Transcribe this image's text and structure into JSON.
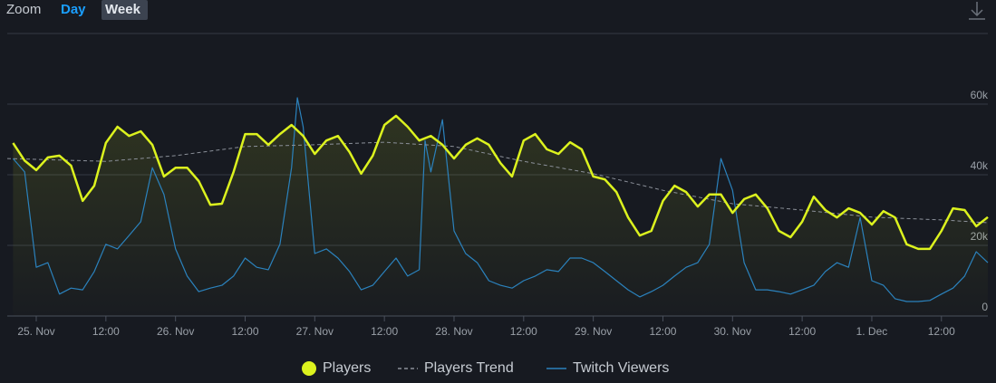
{
  "chart_data": {
    "type": "line",
    "zoom_label": "Zoom",
    "zoom_options": [
      "Day",
      "Week"
    ],
    "xlim": [
      -5,
      164
    ],
    "xticks": [
      {
        "value": 0,
        "label": "25. Nov"
      },
      {
        "value": 12,
        "label": "12:00"
      },
      {
        "value": 24,
        "label": "26. Nov"
      },
      {
        "value": 36,
        "label": "12:00"
      },
      {
        "value": 48,
        "label": "27. Nov"
      },
      {
        "value": 60,
        "label": "12:00"
      },
      {
        "value": 72,
        "label": "28. Nov"
      },
      {
        "value": 84,
        "label": "12:00"
      },
      {
        "value": 96,
        "label": "29. Nov"
      },
      {
        "value": 108,
        "label": "12:00"
      },
      {
        "value": 120,
        "label": "30. Nov"
      },
      {
        "value": 132,
        "label": "12:00"
      },
      {
        "value": 144,
        "label": "1. Dec"
      },
      {
        "value": 156,
        "label": "12:00"
      }
    ],
    "ylim": [
      0,
      80000
    ],
    "yticks": [
      0,
      {
        "value": 20000,
        "label": "20k"
      },
      {
        "value": 40000,
        "label": "40k"
      },
      {
        "value": 60000,
        "label": "60k"
      }
    ],
    "grid": true,
    "legend": "bottom",
    "series": [
      {
        "name": "Players",
        "color": "#dcf21e",
        "style": "solid",
        "x": [
          -4,
          -2,
          0,
          2,
          4,
          6,
          8,
          10,
          12,
          14,
          16,
          18,
          20,
          22,
          24,
          26,
          28,
          30,
          32,
          34,
          36,
          38,
          40,
          42,
          44,
          46,
          48,
          50,
          52,
          54,
          56,
          58,
          60,
          62,
          64,
          66,
          68,
          70,
          72,
          74,
          76,
          78,
          80,
          82,
          84,
          86,
          88,
          90,
          92,
          94,
          96,
          98,
          100,
          102,
          104,
          106,
          108,
          110,
          112,
          114,
          116,
          118,
          120,
          122,
          124,
          126,
          128,
          130,
          132,
          134,
          136,
          138,
          140,
          142,
          144,
          146,
          148,
          150,
          152,
          154,
          156,
          158,
          160,
          162,
          164
        ],
        "values": [
          49000,
          44000,
          41300,
          44900,
          45400,
          42600,
          32600,
          36900,
          49000,
          53600,
          51000,
          52300,
          48500,
          39500,
          42000,
          42000,
          38200,
          31500,
          31800,
          40800,
          51500,
          51500,
          48500,
          51500,
          54100,
          51000,
          45900,
          49700,
          51000,
          46400,
          40300,
          45400,
          54100,
          56700,
          53600,
          49700,
          51000,
          48500,
          44600,
          48500,
          50300,
          48500,
          43300,
          39500,
          49700,
          51500,
          47200,
          45900,
          49200,
          47200,
          39500,
          38700,
          35100,
          27900,
          22800,
          24100,
          32600,
          36900,
          35100,
          31000,
          34400,
          34400,
          29200,
          33100,
          34400,
          30500,
          24100,
          22300,
          26700,
          33800,
          30000,
          27900,
          30500,
          29200,
          25900,
          29700,
          27900,
          20300,
          19000,
          19000,
          24100,
          30500,
          30000,
          25400,
          28000
        ]
      },
      {
        "name": "Players Trend",
        "color": "#8b9099",
        "style": "dashed",
        "x": [
          -5,
          12,
          24,
          36,
          48,
          60,
          72,
          84,
          96,
          108,
          120,
          132,
          144,
          156,
          164
        ],
        "values": [
          44600,
          43800,
          45400,
          48000,
          48500,
          49200,
          48000,
          43800,
          40300,
          35600,
          31800,
          30000,
          28000,
          27200,
          26400
        ]
      },
      {
        "name": "Twitch Viewers",
        "color": "#2b82bd",
        "style": "solid",
        "x": [
          -4,
          -2,
          0,
          2,
          4,
          6,
          8,
          10,
          12,
          14,
          16,
          18,
          20,
          22,
          24,
          26,
          28,
          30,
          32,
          34,
          36,
          38,
          40,
          42,
          44,
          45,
          46,
          48,
          50,
          52,
          54,
          56,
          58,
          60,
          62,
          64,
          66,
          67,
          68,
          70,
          72,
          74,
          76,
          78,
          80,
          82,
          84,
          86,
          88,
          90,
          92,
          94,
          96,
          98,
          100,
          102,
          104,
          106,
          108,
          110,
          112,
          114,
          116,
          118,
          120,
          122,
          124,
          126,
          128,
          130,
          132,
          134,
          136,
          138,
          140,
          142,
          144,
          146,
          148,
          150,
          152,
          154,
          156,
          158,
          160,
          162,
          164
        ],
        "values": [
          44600,
          40800,
          13800,
          15100,
          6200,
          7900,
          7400,
          12600,
          20300,
          19000,
          22800,
          26700,
          42000,
          34400,
          19000,
          11300,
          6900,
          7900,
          8700,
          11300,
          16400,
          13800,
          13100,
          20300,
          42000,
          61800,
          53600,
          17700,
          19000,
          16400,
          12600,
          7400,
          8700,
          12600,
          16400,
          11300,
          13100,
          49700,
          40800,
          55600,
          24100,
          17700,
          15100,
          10000,
          8700,
          7900,
          10000,
          11300,
          13100,
          12600,
          16400,
          16400,
          15100,
          12600,
          10000,
          7400,
          5400,
          6900,
          8700,
          11300,
          13800,
          15100,
          20300,
          44600,
          35600,
          15100,
          7400,
          7400,
          6900,
          6200,
          7400,
          8700,
          12600,
          15100,
          13800,
          27900,
          10000,
          8700,
          4900,
          4100,
          4100,
          4400,
          6200,
          7900,
          11300,
          18200,
          15100
        ]
      }
    ]
  }
}
